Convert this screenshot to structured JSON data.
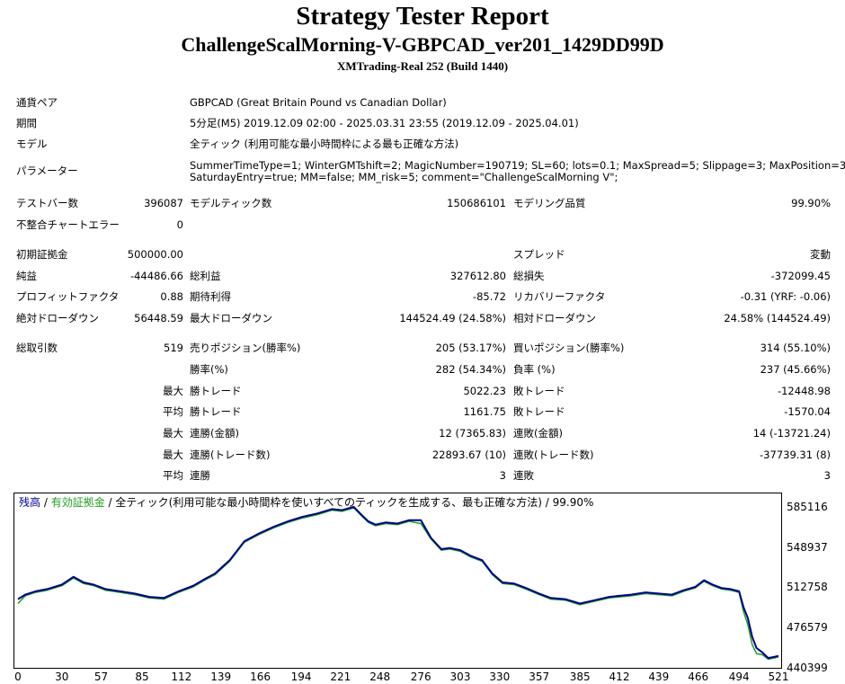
{
  "report": {
    "title": "Strategy Tester Report",
    "subtitle": "ChallengeScalMorning-V-GBPCAD_ver201_1429DD99D",
    "build": "XMTrading-Real 252 (Build 1440)"
  },
  "info": {
    "pair_label": "通貨ペア",
    "pair_value": "GBPCAD (Great Britain Pound vs Canadian Dollar)",
    "period_label": "期間",
    "period_value": "5分足(M5) 2019.12.09 02:00 - 2025.03.31 23:55 (2019.12.09 - 2025.04.01)",
    "model_label": "モデル",
    "model_value": "全ティック (利用可能な最小時間枠による最も正確な方法)",
    "params_label": "パラメーター",
    "params_line1": "SummerTimeType=1; WinterGMTshift=2; MagicNumber=190719; SL=60; lots=0.1; MaxSpread=5; Slippage=3; MaxPosition=3;",
    "params_line2": "SaturdayEntry=true; MM=false; MM_risk=5; comment=\"ChallengeScalMorning V\";"
  },
  "stats": {
    "bars_label": "テストバー数",
    "bars_value": "396087",
    "ticks_label": "モデルティック数",
    "ticks_value": "150686101",
    "quality_label": "モデリング品質",
    "quality_value": "99.90%",
    "mismatch_label": "不整合チャートエラー",
    "mismatch_value": "0",
    "deposit_label": "初期証拠金",
    "deposit_value": "500000.00",
    "spread_label": "スプレッド",
    "spread_value": "変動",
    "net_label": "純益",
    "net_value": "-44486.66",
    "gross_profit_label": "総利益",
    "gross_profit_value": "327612.80",
    "gross_loss_label": "総損失",
    "gross_loss_value": "-372099.45",
    "pf_label": "プロフィットファクタ",
    "pf_value": "0.88",
    "payoff_label": "期待利得",
    "payoff_value": "-85.72",
    "recovery_label": "リカバリーファクタ",
    "recovery_value": "-0.31 (YRF: -0.06)",
    "abs_dd_label": "絶対ドローダウン",
    "abs_dd_value": "56448.59",
    "max_dd_label": "最大ドローダウン",
    "max_dd_value": "144524.49 (24.58%)",
    "rel_dd_label": "相対ドローダウン",
    "rel_dd_value": "24.58% (144524.49)",
    "trades_label": "総取引数",
    "trades_value": "519",
    "short_label": "売りポジション(勝率%)",
    "short_value": "205 (53.17%)",
    "long_label": "買いポジション(勝率%)",
    "long_value": "314 (55.10%)",
    "winrate_label": "勝率(%)",
    "winrate_value": "282 (54.34%)",
    "lossrate_label": "負率 (%)",
    "lossrate_value": "237 (45.66%)",
    "max_label": "最大",
    "avg_label": "平均",
    "largest_win_label": "勝トレード",
    "largest_win_value": "5022.23",
    "largest_loss_label": "敗トレード",
    "largest_loss_value": "-12448.98",
    "avg_win_label": "勝トレード",
    "avg_win_value": "1161.75",
    "avg_loss_label": "敗トレード",
    "avg_loss_value": "-1570.04",
    "consec_win_amt_label": "連勝(金額)",
    "consec_win_amt_value": "12 (7365.83)",
    "consec_loss_amt_label": "連敗(金額)",
    "consec_loss_amt_value": "14 (-13721.24)",
    "consec_win_cnt_label": "連勝(トレード数)",
    "consec_win_cnt_value": "22893.67 (10)",
    "consec_loss_cnt_label": "連敗(トレード数)",
    "consec_loss_cnt_value": "-37739.31 (8)",
    "avg_consec_win_label": "連勝",
    "avg_consec_win_value": "3",
    "avg_consec_loss_label": "連敗",
    "avg_consec_loss_value": "3"
  },
  "chart_data": {
    "type": "line",
    "legend_balance": "残高",
    "legend_sep1": " / ",
    "legend_equity": "有効証拠金",
    "legend_sep2": " / ",
    "legend_rest": "全ティック(利用可能な最小時間枠を使いすべてのティックを生成する、最も正確な方法) / 99.90%",
    "y_ticks": [
      "585116",
      "548937",
      "512758",
      "476579",
      "440399"
    ],
    "x_ticks": [
      "0",
      "30",
      "57",
      "85",
      "112",
      "139",
      "166",
      "194",
      "221",
      "248",
      "276",
      "303",
      "330",
      "357",
      "385",
      "412",
      "439",
      "466",
      "494",
      "521"
    ],
    "ylim": [
      440399,
      585116
    ],
    "xlim": [
      0,
      521
    ],
    "series": [
      {
        "name": "残高",
        "color": "#00008b",
        "x": [
          0,
          5,
          12,
          20,
          30,
          38,
          45,
          52,
          60,
          70,
          80,
          90,
          100,
          110,
          120,
          128,
          135,
          145,
          155,
          165,
          175,
          185,
          195,
          205,
          215,
          222,
          230,
          236,
          240,
          245,
          252,
          260,
          268,
          276,
          283,
          290,
          296,
          303,
          310,
          318,
          325,
          332,
          340,
          348,
          357,
          365,
          375,
          385,
          395,
          405,
          412,
          420,
          430,
          439,
          448,
          456,
          464,
          470,
          476,
          482,
          488,
          494,
          497,
          500,
          503,
          506,
          510,
          514,
          518,
          521
        ],
        "y": [
          503000,
          507000,
          510000,
          512000,
          516000,
          523000,
          518000,
          516000,
          512000,
          510000,
          508000,
          505000,
          504000,
          510000,
          515000,
          521000,
          526000,
          538000,
          555000,
          562000,
          568000,
          573000,
          577000,
          580000,
          584000,
          583000,
          586000,
          578000,
          573000,
          570000,
          572000,
          571000,
          574000,
          574000,
          558000,
          548000,
          549000,
          547000,
          542000,
          538000,
          526000,
          518000,
          517000,
          513000,
          508000,
          504000,
          503000,
          499000,
          502000,
          505000,
          506000,
          507000,
          509000,
          508000,
          507000,
          511000,
          514000,
          520000,
          516000,
          513000,
          512000,
          510000,
          496000,
          486000,
          469000,
          459000,
          455000,
          450000,
          451000,
          452000
        ]
      },
      {
        "name": "有効証拠金",
        "color": "#1e9e1e",
        "x": [
          0,
          5,
          12,
          20,
          30,
          38,
          45,
          52,
          60,
          70,
          80,
          90,
          100,
          110,
          120,
          128,
          135,
          145,
          155,
          165,
          175,
          185,
          195,
          205,
          215,
          222,
          230,
          236,
          240,
          245,
          252,
          260,
          268,
          276,
          283,
          290,
          296,
          303,
          310,
          318,
          325,
          332,
          340,
          348,
          357,
          365,
          375,
          385,
          395,
          405,
          412,
          420,
          430,
          439,
          448,
          456,
          464,
          470,
          476,
          482,
          488,
          494,
          497,
          500,
          503,
          506,
          510,
          514,
          518,
          521
        ],
        "y": [
          499000,
          506000,
          509000,
          511000,
          515000,
          522000,
          517000,
          515000,
          511000,
          509000,
          507000,
          504000,
          503000,
          509000,
          514000,
          520000,
          525000,
          537000,
          554000,
          561000,
          567000,
          572000,
          576000,
          579000,
          583000,
          582000,
          585000,
          577000,
          572000,
          569000,
          571000,
          570000,
          573000,
          571000,
          557000,
          547000,
          548000,
          546000,
          541000,
          537000,
          525000,
          517000,
          516000,
          512000,
          507000,
          503000,
          502000,
          498000,
          501000,
          504000,
          505000,
          506000,
          508000,
          507000,
          506000,
          510000,
          513000,
          519000,
          515000,
          512000,
          511000,
          509000,
          492000,
          480000,
          462000,
          454000,
          453000,
          449000,
          450000,
          451000
        ]
      }
    ]
  }
}
